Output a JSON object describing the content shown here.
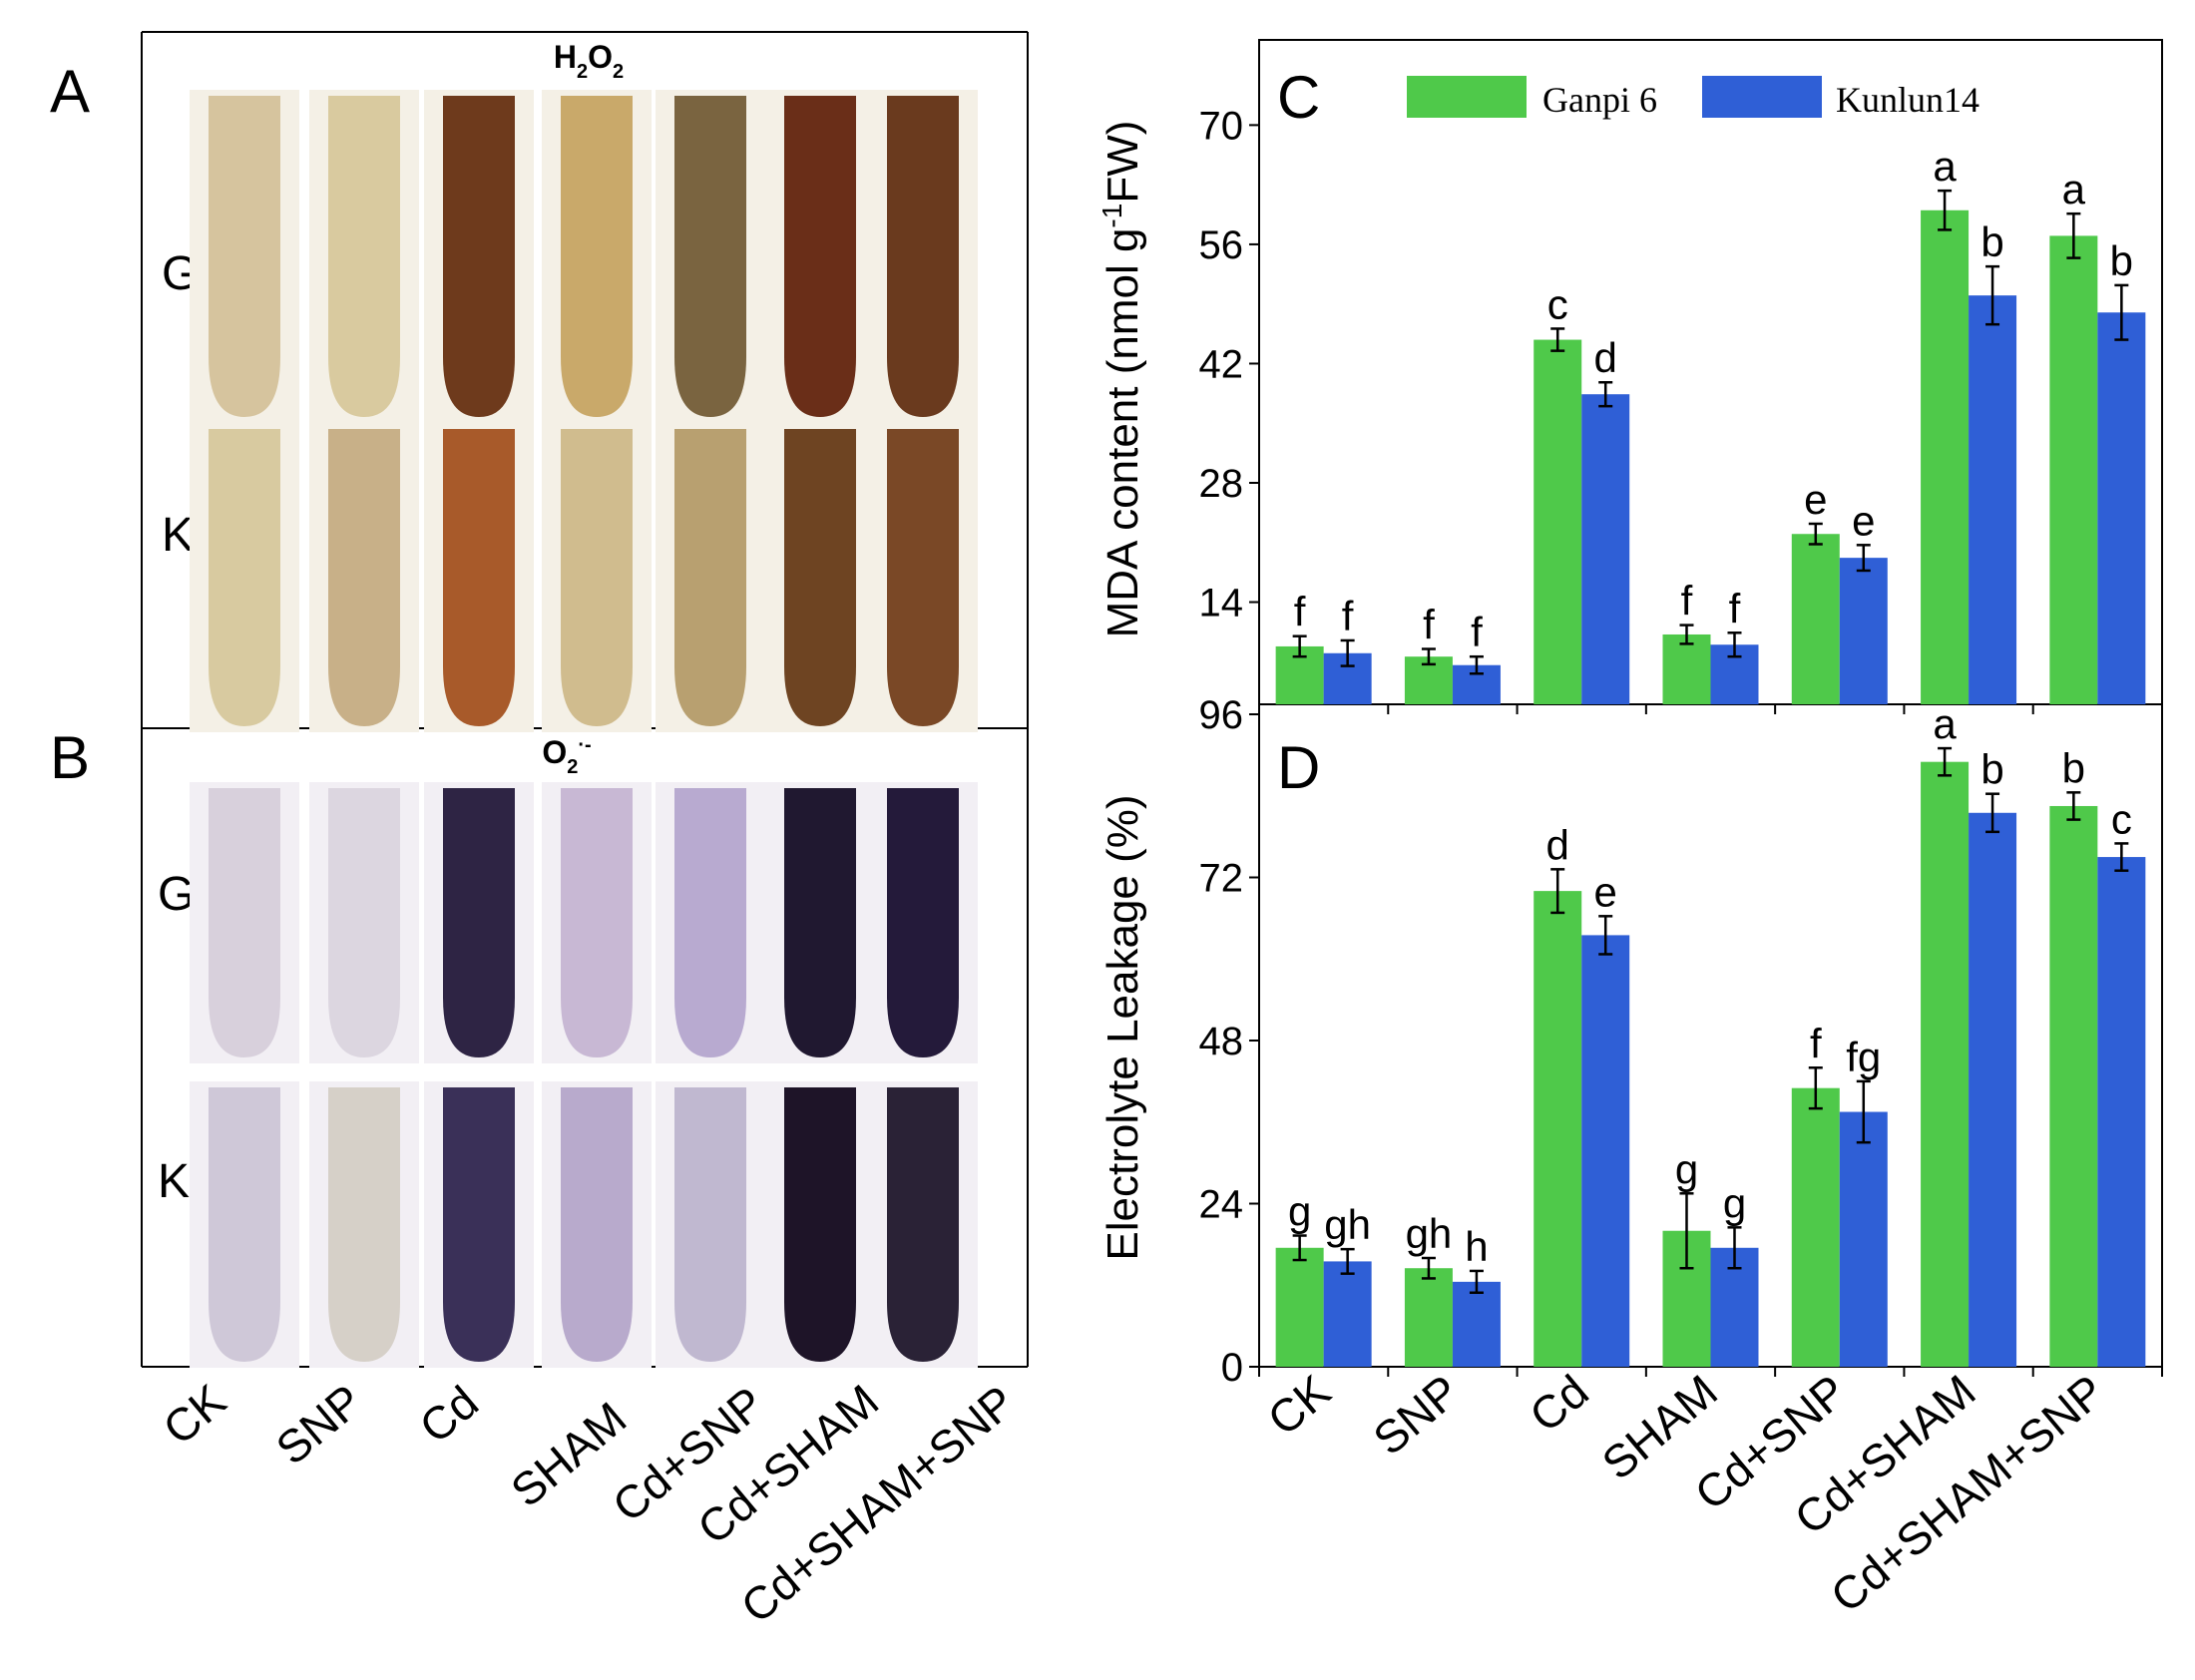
{
  "panels": {
    "a_label": "A",
    "b_label": "B",
    "c_label": "C",
    "d_label": "D"
  },
  "stain_panel_a": {
    "title_main": "H",
    "title_sub1": "2",
    "title_main2": "O",
    "title_sub2": "2",
    "row_top": "G",
    "row_bottom": "K",
    "colors_top": [
      "#d6c49e",
      "#d9ca9f",
      "#6e3a1c",
      "#c9a96a",
      "#7a6440",
      "#6a2e18",
      "#6a3a1e"
    ],
    "colors_bottom": [
      "#d8caa0",
      "#c8b088",
      "#a85a2a",
      "#d0bc8e",
      "#b8a070",
      "#6e4422",
      "#7a4826"
    ]
  },
  "stain_panel_b": {
    "title_main": "O",
    "title_sub": "2",
    "title_sup": "·-",
    "row_top": "G",
    "row_bottom": "K",
    "colors_top": [
      "#d8d0dc",
      "#dcd6e0",
      "#2e2444",
      "#c8b8d4",
      "#b8aad0",
      "#201830",
      "#241a3a"
    ],
    "colors_bottom": [
      "#cfc8d8",
      "#d6d0c8",
      "#3a3058",
      "#b8aacc",
      "#c0b8d0",
      "#1e1428",
      "#2a2236"
    ]
  },
  "stain_categories": [
    "CK",
    "SNP",
    "Cd",
    "SHAM",
    "Cd+SNP",
    "Cd+SHAM",
    "Cd+SHAM+SNP"
  ],
  "legend": {
    "series1": "Ganpi 6",
    "series2": "Kunlun14",
    "color1": "#4fc94a",
    "color2": "#2f5fd6"
  },
  "chart_data": [
    {
      "type": "bar",
      "panel": "C",
      "categories": [
        "CK",
        "SNP",
        "Cd",
        "SHAM",
        "Cd+SNP",
        "Cd+SHAM",
        "Cd+SHAM+SNP"
      ],
      "series": [
        {
          "name": "Ganpi 6",
          "values": [
            8.8,
            7.6,
            44.8,
            10.2,
            22.0,
            60.0,
            57.0
          ],
          "errors": [
            1.2,
            0.9,
            1.3,
            1.1,
            1.2,
            2.3,
            2.6
          ],
          "sig": [
            "f",
            "f",
            "c",
            "f",
            "e",
            "a",
            "a"
          ]
        },
        {
          "name": "Kunlun14",
          "values": [
            8.0,
            6.6,
            38.4,
            9.0,
            19.2,
            50.0,
            48.0
          ],
          "errors": [
            1.5,
            1.0,
            1.4,
            1.4,
            1.5,
            3.4,
            3.2
          ],
          "sig": [
            "f",
            "f",
            "d",
            "f",
            "e",
            "b",
            "b"
          ]
        }
      ],
      "ylabel_pre": "MDA content (nmol g",
      "ylabel_sup": "-1",
      "ylabel_post": "FW)",
      "ylim": [
        2,
        80
      ],
      "yticks": [
        14,
        28,
        42,
        56,
        70
      ]
    },
    {
      "type": "bar",
      "panel": "D",
      "categories": [
        "CK",
        "SNP",
        "Cd",
        "SHAM",
        "Cd+SNP",
        "Cd+SHAM",
        "Cd+SHAM+SNP"
      ],
      "series": [
        {
          "name": "Ganpi 6",
          "values": [
            17.5,
            14.5,
            70.0,
            20.0,
            41.0,
            89.0,
            82.5
          ],
          "errors": [
            1.8,
            1.5,
            3.2,
            5.5,
            3.0,
            2.0,
            2.0
          ],
          "sig": [
            "g",
            "gh",
            "d",
            "g",
            "f",
            "a",
            "b"
          ]
        },
        {
          "name": "Kunlun14",
          "values": [
            15.5,
            12.5,
            63.5,
            17.5,
            37.5,
            81.5,
            75.0
          ],
          "errors": [
            1.8,
            1.6,
            2.8,
            3.0,
            4.5,
            2.8,
            2.0
          ],
          "sig": [
            "gh",
            "h",
            "e",
            "g",
            "fg",
            "b",
            "c"
          ]
        }
      ],
      "ylabel": "Electrolyte Leakage (%)",
      "ylim": [
        0,
        96
      ],
      "yticks": [
        0,
        24,
        48,
        72,
        96
      ]
    }
  ]
}
